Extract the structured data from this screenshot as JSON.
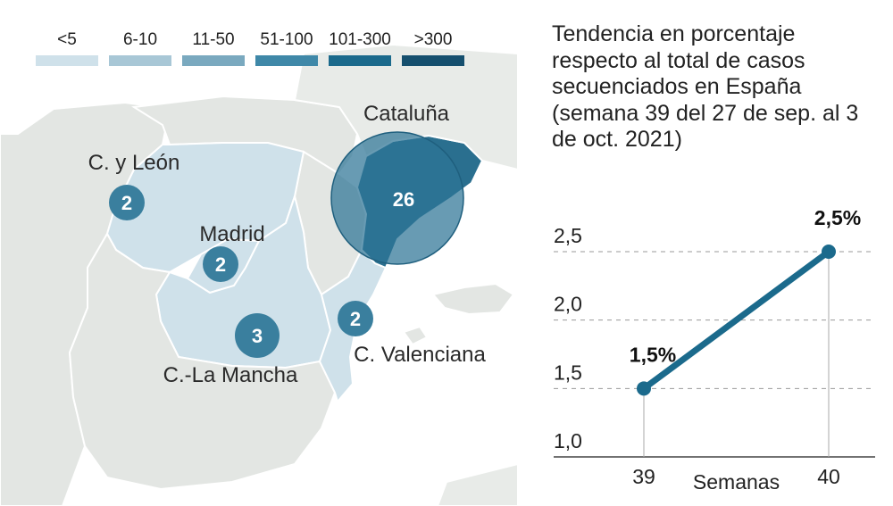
{
  "legend": {
    "items": [
      {
        "label": "<5",
        "color": "#cfe1ea"
      },
      {
        "label": "6-10",
        "color": "#a8c7d6"
      },
      {
        "label": "11-50",
        "color": "#7aa9bf"
      },
      {
        "label": "51-100",
        "color": "#3f88a8"
      },
      {
        "label": "101-300",
        "color": "#1b6a8c"
      },
      {
        "label": ">300",
        "color": "#154f6e"
      }
    ]
  },
  "map": {
    "regions": {
      "cataluna": {
        "name": "Cataluña",
        "cases": "26"
      },
      "castilla_leon": {
        "name": "C. y León",
        "cases": "2"
      },
      "madrid": {
        "name": "Madrid",
        "cases": "2"
      },
      "castilla_la_mancha": {
        "name": "C.-La Mancha",
        "cases": "3"
      },
      "valenciana": {
        "name": "C. Valenciana",
        "cases": "2"
      }
    },
    "colors": {
      "other_land": "#e3e6e3",
      "low_fill": "#cfe1ea",
      "bubble": "#2e7596",
      "border": "#ffffff"
    }
  },
  "chart_title": "Tendencia en porcentaje respecto al total de casos secuenciados en España (semana 39 del 27 de sep. al 3 de oct. 2021)",
  "chart_data": {
    "type": "line",
    "title": "Tendencia en porcentaje respecto al total de casos secuenciados en España (semana 39 del 27 de sep. al 3 de oct. 2021)",
    "xlabel": "Semanas",
    "ylabel": "",
    "x": [
      39,
      40
    ],
    "x_tick_labels": [
      "39",
      "40"
    ],
    "y": [
      1.5,
      2.5
    ],
    "data_labels": [
      "1,5%",
      "2,5%"
    ],
    "ylim": [
      1.0,
      2.5
    ],
    "y_ticks": [
      1.0,
      1.5,
      2.0,
      2.5
    ],
    "y_tick_labels": [
      "1,0",
      "1,5",
      "2,0",
      "2,5"
    ],
    "line_color": "#1b6a8c",
    "grid": true
  }
}
